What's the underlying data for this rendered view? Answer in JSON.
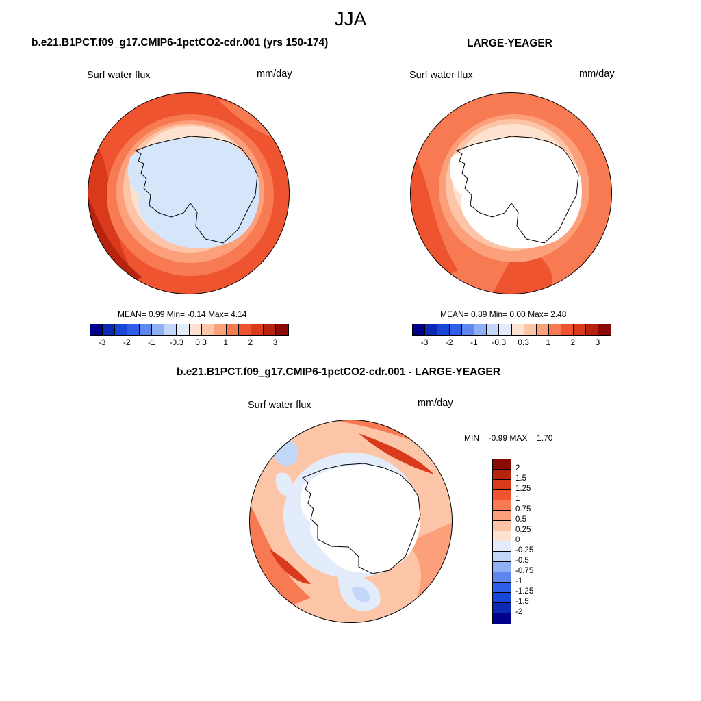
{
  "figure": {
    "suptitle": "JJA",
    "panel_a": {
      "title": "b.e21.B1PCT.f09_g17.CMIP6-1pctCO2-cdr.001 (yrs 150-174)",
      "variable": "Surf water flux",
      "units": "mm/day",
      "stats": "MEAN=   0.99  Min=  -0.14  Max=    4.14"
    },
    "panel_b": {
      "title": "LARGE-YEAGER",
      "variable": "Surf water flux",
      "units": "mm/day",
      "stats": "MEAN=   0.89  Min=   0.00  Max=   2.48"
    },
    "panel_c": {
      "title": "b.e21.B1PCT.f09_g17.CMIP6-1pctCO2-cdr.001 - LARGE-YEAGER",
      "variable": "Surf water flux",
      "units": "mm/day",
      "stats": "MIN =  -0.99 MAX =   1.70"
    },
    "abs_colorbar": {
      "ticks": [
        "-3",
        "-2",
        "-1",
        "-0.3",
        "0.3",
        "1",
        "2",
        "3"
      ],
      "colors": [
        "#00008b",
        "#0a29b5",
        "#1846d6",
        "#2f5ee8",
        "#5e87ef",
        "#8fb0f4",
        "#c3d7f8",
        "#e2ecfb",
        "#fde2cf",
        "#fcc5a8",
        "#fba07a",
        "#f77a52",
        "#ef5430",
        "#d93a1c",
        "#b6230f",
        "#8b0a05"
      ]
    },
    "diff_colorbar": {
      "labels": [
        "2",
        "1.5",
        "1.25",
        "1",
        "0.75",
        "0.5",
        "0.25",
        "0",
        "-0.25",
        "-0.5",
        "-0.75",
        "-1",
        "-1.25",
        "-1.5",
        "-2"
      ],
      "colors": [
        "#8b0a05",
        "#b6230f",
        "#d93a1c",
        "#ef5430",
        "#f77a52",
        "#fba07a",
        "#fcc5a8",
        "#fde2cf",
        "#e2ecfb",
        "#c3d7f8",
        "#8fb0f4",
        "#5e87ef",
        "#2f5ee8",
        "#1846d6",
        "#0a29b5",
        "#00008b"
      ]
    }
  }
}
